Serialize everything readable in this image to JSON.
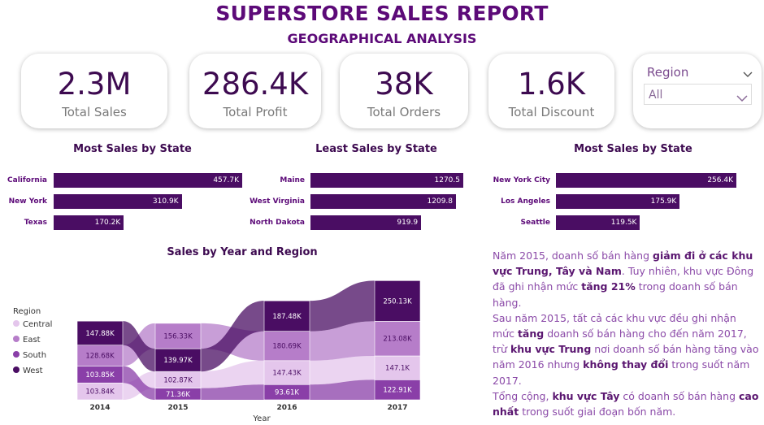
{
  "header": {
    "title": "SUPERSTORE SALES REPORT",
    "subtitle": "GEOGRAPHICAL ANALYSIS"
  },
  "kpis": [
    {
      "value": "2.3M",
      "label": "Total Sales"
    },
    {
      "value": "286.4K",
      "label": "Total Profit"
    },
    {
      "value": "38K",
      "label": "Total Orders"
    },
    {
      "value": "1.6K",
      "label": "Total Discount"
    }
  ],
  "region_slicer": {
    "label": "Region",
    "value": "All"
  },
  "most_sales_state": {
    "title": "Most Sales by State",
    "rows": [
      {
        "label": "California",
        "value": 457.7,
        "text": "457.7K"
      },
      {
        "label": "New York",
        "value": 310.9,
        "text": "310.9K"
      },
      {
        "label": "Texas",
        "value": 170.2,
        "text": "170.2K"
      }
    ]
  },
  "least_sales_state": {
    "title": "Least Sales by State",
    "rows": [
      {
        "label": "Maine",
        "value": 1270.5,
        "text": "1270.5"
      },
      {
        "label": "West Virginia",
        "value": 1209.8,
        "text": "1209.8"
      },
      {
        "label": "North Dakota",
        "value": 919.9,
        "text": "919.9"
      }
    ]
  },
  "most_sales_city": {
    "title": "Most Sales by State",
    "rows": [
      {
        "label": "New York City",
        "value": 256.4,
        "text": "256.4K"
      },
      {
        "label": "Los Angeles",
        "value": 175.9,
        "text": "175.9K"
      },
      {
        "label": "Seattle",
        "value": 119.5,
        "text": "119.5K"
      }
    ]
  },
  "chart_data": {
    "type": "ribbon",
    "title": "Sales by Year and Region",
    "xlabel": "Year",
    "legend_title": "Region",
    "categories": [
      "2014",
      "2015",
      "2016",
      "2017"
    ],
    "series": [
      {
        "name": "Central",
        "values": [
          103.84,
          102.87,
          147.43,
          147.1
        ],
        "labels": [
          "103.84K",
          "102.87K",
          "147.43K",
          "147.1K"
        ],
        "color": "#e4c6ec"
      },
      {
        "name": "East",
        "values": [
          128.68,
          156.33,
          180.69,
          213.08
        ],
        "labels": [
          "128.68K",
          "156.33K",
          "180.69K",
          "213.08K"
        ],
        "color": "#b67dc9"
      },
      {
        "name": "South",
        "values": [
          103.85,
          71.36,
          93.61,
          122.91
        ],
        "labels": [
          "103.85K",
          "71.36K",
          "93.61K",
          "122.91K"
        ],
        "color": "#8a3fa8"
      },
      {
        "name": "West",
        "values": [
          147.88,
          139.97,
          187.48,
          250.13
        ],
        "labels": [
          "147.88K",
          "139.97K",
          "187.48K",
          "250.13K"
        ],
        "color": "#4a0d63"
      }
    ]
  },
  "narrative": {
    "p1_a": "Năm 2015, doanh số bán hàng ",
    "p1_b": "giảm đi ở các khu vực Trung, Tây và Nam",
    "p1_c": ". Tuy nhiên, khu vực Đông đã ghi nhận mức ",
    "p1_d": "tăng 21%",
    "p1_e": " trong doanh số bán hàng.",
    "p2_a": "Sau năm 2015, tất cả các khu vực đều ghi nhận mức ",
    "p2_b": "tăng",
    "p2_c": " doanh số bán hàng cho đến năm 2017, trừ ",
    "p2_d": "khu vực Trung",
    "p2_e": " nơi doanh số bán hàng tăng vào năm 2016 nhưng ",
    "p2_f": "không thay đổi",
    "p2_g": " trong suốt năm 2017.",
    "p3_a": "Tổng cộng, ",
    "p3_b": "khu vực Tây",
    "p3_c": " có doanh số bán hàng ",
    "p3_d": "cao nhất",
    "p3_e": " trong suốt giai đoạn bốn năm."
  }
}
